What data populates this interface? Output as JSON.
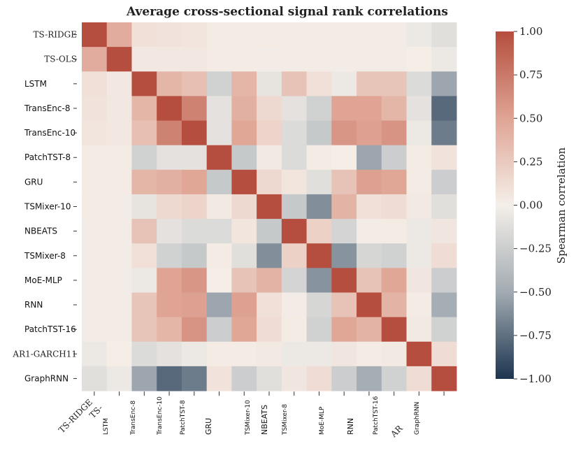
{
  "chart_data": {
    "type": "heatmap",
    "title": "Average cross-sectional signal rank correlations",
    "colorbar_label": "Spearman correlation",
    "vmin": -1.0,
    "vmax": 1.0,
    "colorbar_ticks": [
      "1.00",
      "0.75",
      "0.50",
      "0.25",
      "0.00",
      "−0.25",
      "−0.50",
      "−0.75",
      "−1.00"
    ],
    "colorbar_tick_values": [
      1.0,
      0.75,
      0.5,
      0.25,
      0.0,
      -0.25,
      -0.5,
      -0.75,
      -1.0
    ],
    "rows": [
      "TS-RIDGE",
      "TS-OLS",
      "LSTM",
      "TransEnc-8",
      "TransEnc-10",
      "PatchTST-8",
      "GRU",
      "TSMixer-10",
      "NBEATS",
      "TSMixer-8",
      "MoE-MLP",
      "RNN",
      "PatchTST-16",
      "AR1-GARCH11",
      "GraphRNN"
    ],
    "x_tick_labels": [
      "TS-RIDGE",
      "TS-",
      "LSTM",
      "TransEnc-8",
      "TransEnc-10",
      "PatchTST-8",
      "GRU",
      "TSMixer-10",
      "NBEATS",
      "TSMixer-8",
      "MoE-MLP",
      "RNN",
      "PatchTST-16",
      "AR",
      "GraphRNN"
    ],
    "matrix": [
      [
        1.0,
        0.45,
        0.1,
        0.08,
        0.07,
        0.03,
        0.03,
        0.03,
        0.02,
        0.02,
        0.02,
        0.02,
        0.02,
        -0.05,
        -0.12
      ],
      [
        0.45,
        1.0,
        0.05,
        0.05,
        0.05,
        0.03,
        0.03,
        0.02,
        0.02,
        0.02,
        0.02,
        0.02,
        0.02,
        0.01,
        -0.05
      ],
      [
        0.1,
        0.05,
        1.0,
        0.38,
        0.32,
        -0.22,
        0.38,
        -0.08,
        0.3,
        0.1,
        -0.05,
        0.28,
        0.28,
        -0.15,
        -0.52
      ],
      [
        0.08,
        0.05,
        0.38,
        1.0,
        0.7,
        -0.1,
        0.42,
        0.15,
        -0.1,
        -0.22,
        0.5,
        0.5,
        0.38,
        -0.1,
        -0.78
      ],
      [
        0.07,
        0.05,
        0.32,
        0.7,
        1.0,
        -0.1,
        0.48,
        0.18,
        -0.15,
        -0.28,
        0.58,
        0.52,
        0.6,
        -0.05,
        -0.7
      ],
      [
        0.03,
        0.03,
        -0.22,
        -0.1,
        -0.1,
        1.0,
        -0.28,
        0.04,
        -0.15,
        0.03,
        0.01,
        -0.52,
        -0.25,
        0.03,
        0.08
      ],
      [
        0.03,
        0.03,
        0.38,
        0.42,
        0.48,
        -0.28,
        1.0,
        0.15,
        0.07,
        -0.12,
        0.3,
        0.52,
        0.48,
        0.03,
        -0.25
      ],
      [
        0.03,
        0.02,
        -0.08,
        0.15,
        0.18,
        0.04,
        0.15,
        1.0,
        -0.28,
        -0.62,
        0.4,
        0.1,
        0.12,
        0.04,
        -0.12
      ],
      [
        0.02,
        0.02,
        0.3,
        -0.1,
        -0.15,
        -0.15,
        0.07,
        -0.28,
        1.0,
        0.2,
        -0.2,
        0.02,
        0.03,
        -0.05,
        0.06
      ],
      [
        0.02,
        0.02,
        0.1,
        -0.22,
        -0.28,
        0.03,
        -0.12,
        -0.62,
        0.2,
        1.0,
        -0.6,
        -0.18,
        -0.22,
        -0.05,
        0.12
      ],
      [
        0.02,
        0.02,
        -0.05,
        0.5,
        0.58,
        0.01,
        0.3,
        0.4,
        -0.2,
        -0.6,
        1.0,
        0.3,
        0.48,
        0.06,
        -0.25
      ],
      [
        0.02,
        0.02,
        0.28,
        0.5,
        0.52,
        -0.52,
        0.52,
        0.1,
        0.02,
        -0.18,
        0.3,
        1.0,
        0.4,
        0.03,
        -0.48
      ],
      [
        0.02,
        0.02,
        0.28,
        0.38,
        0.6,
        -0.25,
        0.48,
        0.12,
        0.03,
        -0.22,
        0.48,
        0.4,
        1.0,
        0.04,
        -0.22
      ],
      [
        -0.05,
        0.01,
        -0.15,
        -0.1,
        -0.05,
        0.03,
        0.03,
        0.04,
        -0.05,
        -0.05,
        0.06,
        0.03,
        0.04,
        1.0,
        0.12
      ],
      [
        -0.12,
        -0.05,
        -0.52,
        -0.78,
        -0.7,
        0.08,
        -0.25,
        -0.12,
        0.06,
        0.12,
        -0.25,
        -0.48,
        -0.22,
        0.12,
        1.0
      ]
    ]
  }
}
